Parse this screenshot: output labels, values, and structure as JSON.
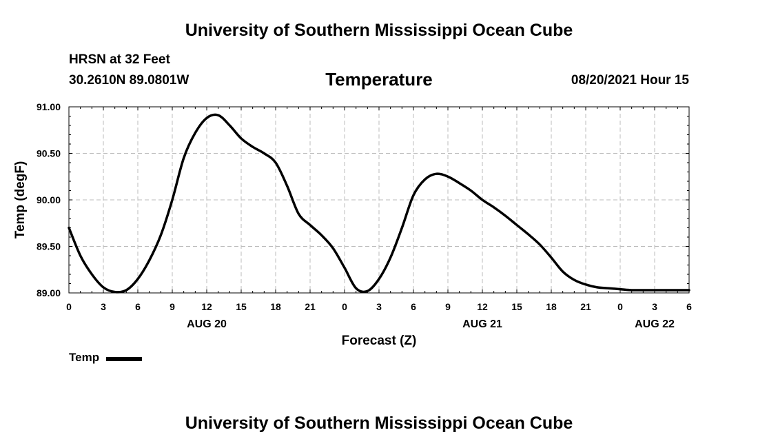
{
  "header": {
    "title": "University of Southern Mississippi Ocean Cube",
    "station": "HRSN at 32 Feet",
    "coordinates": "30.2610N  89.0801W",
    "variable": "Temperature",
    "valid_time": "08/20/2021 Hour 15"
  },
  "footer": {
    "title": "University of Southern Mississippi Ocean Cube"
  },
  "legend": {
    "label": "Temp"
  },
  "chart_data": {
    "type": "line",
    "xlabel": "Forecast (Z)",
    "ylabel": "Temp (degF)",
    "x_start": "08/20/2021 00Z",
    "xlim": [
      0,
      54
    ],
    "ylim": [
      89.0,
      91.0
    ],
    "y_ticks": [
      "89.00",
      "89.50",
      "90.00",
      "90.50",
      "91.00"
    ],
    "x_tick_labels": [
      "0",
      "3",
      "6",
      "9",
      "12",
      "15",
      "18",
      "21",
      "0",
      "3",
      "6",
      "9",
      "12",
      "15",
      "18",
      "21",
      "0",
      "3",
      "6"
    ],
    "date_labels": [
      {
        "label": "AUG 20",
        "at_hour": 12
      },
      {
        "label": "AUG 21",
        "at_hour": 36
      },
      {
        "label": "AUG 22",
        "at_hour": 51
      }
    ],
    "grid": true,
    "series": [
      {
        "name": "Temp",
        "color": "#000000",
        "x": [
          0,
          1,
          2,
          3,
          4,
          5,
          6,
          7,
          8,
          9,
          10,
          11,
          12,
          13,
          14,
          15,
          16,
          17,
          18,
          19,
          20,
          21,
          22,
          23,
          24,
          25,
          26,
          27,
          28,
          29,
          30,
          31,
          32,
          33,
          34,
          35,
          36,
          37,
          38,
          39,
          40,
          41,
          42,
          43,
          44,
          45,
          46,
          47,
          48,
          49,
          50,
          51,
          52,
          53,
          54
        ],
        "values": [
          89.7,
          89.4,
          89.2,
          89.06,
          89.01,
          89.03,
          89.15,
          89.35,
          89.62,
          90.0,
          90.45,
          90.72,
          90.88,
          90.91,
          90.8,
          90.66,
          90.57,
          90.5,
          90.4,
          90.15,
          89.85,
          89.73,
          89.62,
          89.48,
          89.27,
          89.05,
          89.02,
          89.15,
          89.38,
          89.7,
          90.05,
          90.22,
          90.28,
          90.25,
          90.18,
          90.1,
          90.0,
          89.92,
          89.83,
          89.73,
          89.63,
          89.52,
          89.38,
          89.23,
          89.14,
          89.09,
          89.06,
          89.05,
          89.04,
          89.03,
          89.03,
          89.03,
          89.03,
          89.03,
          89.03
        ]
      }
    ]
  }
}
